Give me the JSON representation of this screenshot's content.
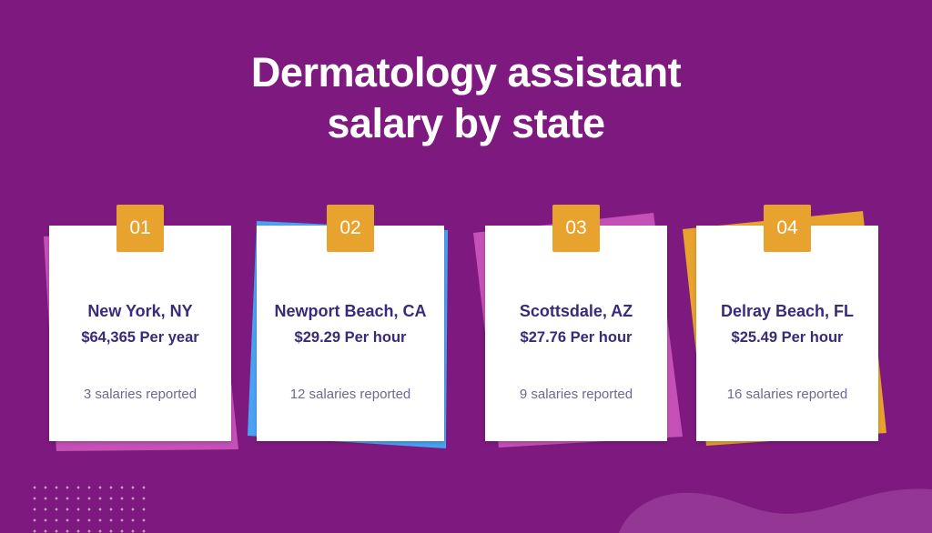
{
  "title": {
    "line1": "Dermatology assistant",
    "line2": "salary by state"
  },
  "colors": {
    "background": "#7e1a7f",
    "badge": "#e8a22e",
    "sheet_pink": "#c551b8",
    "sheet_blue": "#4aa3f2",
    "sheet_orange": "#e8a22e",
    "city_text": "#3b2a7a",
    "reported_text": "#6c6a8e"
  },
  "cards": [
    {
      "number": "01",
      "city": "New York, NY",
      "salary": "$64,365 Per year",
      "reported": "3 salaries reported"
    },
    {
      "number": "02",
      "city": "Newport Beach, CA",
      "salary": "$29.29 Per hour",
      "reported": "12 salaries reported"
    },
    {
      "number": "03",
      "city": "Scottsdale, AZ",
      "salary": "$27.76 Per hour",
      "reported": "9 salaries reported"
    },
    {
      "number": "04",
      "city": "Delray Beach, FL",
      "salary": "$25.49 Per hour",
      "reported": "16 salaries reported"
    }
  ]
}
